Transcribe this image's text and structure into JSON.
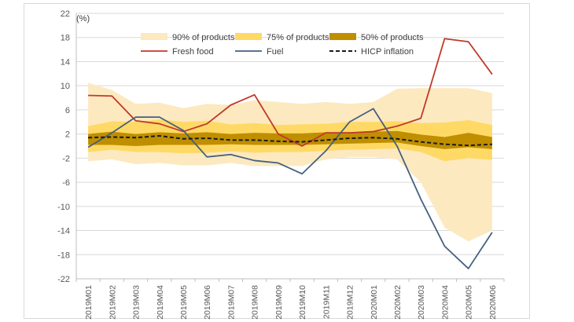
{
  "chart_data": {
    "type": "line",
    "unit_label": "(%)",
    "categories": [
      "2019M01",
      "2019M02",
      "2019M03",
      "2019M04",
      "2019M05",
      "2019M06",
      "2019M07",
      "2019M08",
      "2019M09",
      "2019M10",
      "2019M11",
      "2019M12",
      "2020M01",
      "2020M02",
      "2020M03",
      "2020M04",
      "2020M05",
      "2020M06"
    ],
    "y_ticks": [
      -22,
      -18,
      -14,
      -10,
      -6,
      -2,
      2,
      6,
      10,
      14,
      18,
      22
    ],
    "ylim": [
      -22,
      22
    ],
    "bands": [
      {
        "name": "90% of products",
        "color": "#fde9c0",
        "lower": [
          -2.5,
          -2.2,
          -3.0,
          -2.8,
          -3.2,
          -3.2,
          -2.8,
          -3.3,
          -3.3,
          -3.3,
          -2.2,
          -1.8,
          -1.8,
          -2.2,
          -6.0,
          -13.5,
          -15.8,
          -14.0
        ],
        "upper": [
          10.5,
          9.3,
          7.0,
          7.2,
          6.3,
          7.0,
          6.8,
          7.6,
          7.3,
          7.0,
          7.3,
          7.0,
          7.3,
          9.5,
          9.6,
          9.6,
          9.6,
          8.8
        ]
      },
      {
        "name": "75% of products",
        "color": "#ffd966",
        "lower": [
          -1.0,
          -0.6,
          -1.0,
          -1.0,
          -1.2,
          -1.1,
          -0.9,
          -1.1,
          -1.0,
          -1.0,
          -0.8,
          -0.6,
          -0.5,
          -0.4,
          -1.0,
          -2.5,
          -2.0,
          -2.3
        ],
        "upper": [
          3.3,
          4.1,
          4.0,
          4.4,
          4.0,
          4.2,
          3.6,
          3.8,
          3.5,
          3.6,
          3.7,
          4.0,
          4.0,
          4.1,
          3.8,
          3.9,
          4.3,
          3.5
        ]
      },
      {
        "name": "50% of products",
        "color": "#bf8f00",
        "lower": [
          0.2,
          0.2,
          0.0,
          0.2,
          0.2,
          0.2,
          0.3,
          0.2,
          0.2,
          0.2,
          0.3,
          0.4,
          0.5,
          0.6,
          0.0,
          -0.5,
          -0.2,
          -0.5
        ],
        "upper": [
          2.0,
          2.4,
          2.0,
          2.3,
          2.1,
          2.3,
          2.0,
          2.2,
          2.1,
          2.1,
          2.3,
          2.3,
          2.4,
          2.5,
          1.9,
          1.5,
          2.2,
          1.5
        ]
      }
    ],
    "series": [
      {
        "name": "Fresh food",
        "color": "#c0392b",
        "style": "solid",
        "values": [
          8.4,
          8.3,
          4.2,
          3.7,
          2.4,
          3.7,
          6.8,
          8.5,
          2.0,
          0.0,
          2.2,
          2.2,
          2.4,
          3.3,
          4.6,
          17.8,
          17.3,
          11.9
        ]
      },
      {
        "name": "Fuel",
        "color": "#44607f",
        "style": "solid",
        "values": [
          -0.2,
          2.2,
          4.8,
          4.8,
          2.6,
          -1.8,
          -1.4,
          -2.4,
          -2.8,
          -4.6,
          -0.8,
          4.0,
          6.2,
          0.0,
          -8.8,
          -16.6,
          -20.3,
          -14.3
        ]
      },
      {
        "name": "HICP inflation",
        "color": "#1a1a1a",
        "style": "dashed",
        "values": [
          1.4,
          1.5,
          1.4,
          1.7,
          1.2,
          1.3,
          1.0,
          1.0,
          0.8,
          0.7,
          1.0,
          1.3,
          1.4,
          1.2,
          0.7,
          0.3,
          0.1,
          0.3
        ]
      }
    ],
    "legend": [
      "90% of products",
      "75% of products",
      "50% of products",
      "Fresh food",
      "Fuel",
      "HICP inflation"
    ],
    "legend_position": "top",
    "grid": true
  }
}
